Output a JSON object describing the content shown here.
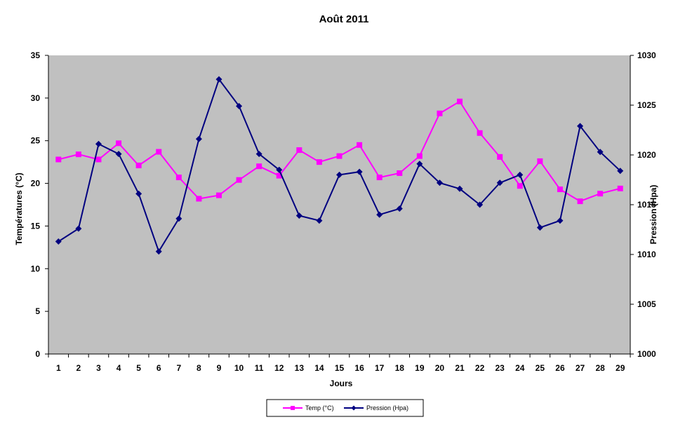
{
  "chart_data": {
    "type": "line",
    "title": "Août 2011",
    "xlabel": "Jours",
    "ylabel_left": "Températures  (°C)",
    "ylabel_right": "Pression (Hpa)",
    "categories": [
      "1",
      "2",
      "3",
      "4",
      "5",
      "6",
      "7",
      "8",
      "9",
      "10",
      "11",
      "12",
      "13",
      "14",
      "15",
      "16",
      "17",
      "18",
      "19",
      "20",
      "21",
      "22",
      "23",
      "24",
      "25",
      "26",
      "27",
      "28",
      "29"
    ],
    "y_left": {
      "min": 0,
      "max": 35,
      "ticks": [
        "0",
        "5",
        "10",
        "15",
        "20",
        "25",
        "30",
        "35"
      ]
    },
    "y_right": {
      "min": 1000,
      "max": 1030,
      "ticks": [
        "1000",
        "1005",
        "1010",
        "1015",
        "1020",
        "1025",
        "1030"
      ]
    },
    "grid": false,
    "legend_position": "bottom",
    "plot_background": "#c0c0c0",
    "series": [
      {
        "name": "Temp (°C)",
        "axis": "left",
        "color": "#ff00ff",
        "marker": "square",
        "values": [
          22.8,
          23.4,
          22.8,
          24.7,
          22.1,
          23.7,
          20.7,
          18.2,
          18.6,
          20.4,
          22.0,
          20.9,
          23.9,
          22.5,
          23.2,
          24.5,
          20.7,
          21.2,
          23.2,
          28.2,
          29.6,
          25.9,
          23.1,
          19.7,
          22.6,
          19.3,
          17.9,
          18.8,
          19.4
        ]
      },
      {
        "name": "Pression (Hpa)",
        "axis": "right",
        "color": "#000080",
        "marker": "diamond",
        "values": [
          1011.3,
          1012.6,
          1021.1,
          1020.1,
          1016.1,
          1010.3,
          1013.6,
          1021.6,
          1027.6,
          1024.9,
          1020.1,
          1018.5,
          1013.9,
          1013.4,
          1018.0,
          1018.3,
          1014.0,
          1014.6,
          1019.1,
          1017.2,
          1016.6,
          1015.0,
          1017.2,
          1018.0,
          1012.7,
          1013.4,
          1022.9,
          1020.3,
          1018.4
        ]
      }
    ]
  }
}
